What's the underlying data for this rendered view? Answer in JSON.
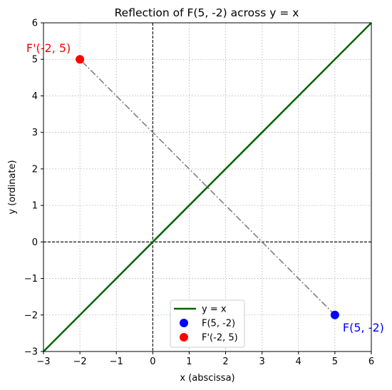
{
  "chart_data": {
    "type": "scatter",
    "title": "Reflection of F(5, -2) across y = x",
    "xlabel": "x (abscissa)",
    "ylabel": "y (ordinate)",
    "xlim": [
      -3,
      6
    ],
    "ylim": [
      -3,
      6
    ],
    "xticks": [
      -3,
      -2,
      -1,
      0,
      1,
      2,
      3,
      4,
      5,
      6
    ],
    "yticks": [
      -3,
      -2,
      -1,
      0,
      1,
      2,
      3,
      4,
      5,
      6
    ],
    "xtick_labels": [
      "−3",
      "−2",
      "−1",
      "0",
      "1",
      "2",
      "3",
      "4",
      "5",
      "6"
    ],
    "ytick_labels": [
      "−3",
      "−2",
      "−1",
      "0",
      "1",
      "2",
      "3",
      "4",
      "5",
      "6"
    ],
    "grid": true,
    "legend_position": "lower center",
    "line": {
      "name": "y = x",
      "x": [
        -3,
        6
      ],
      "y": [
        -3,
        6
      ],
      "color": "#006400"
    },
    "points": [
      {
        "name": "F(5, -2)",
        "label": "F(5, -2)",
        "x": 5,
        "y": -2,
        "color": "#0000ff"
      },
      {
        "name": "F'(-2, 5)",
        "label": "F'(-2, 5)",
        "x": -2,
        "y": 5,
        "color": "#ff0000"
      }
    ],
    "connector": {
      "from": [
        5,
        -2
      ],
      "to": [
        -2,
        5
      ],
      "color": "#808080",
      "style": "dash-dot"
    },
    "reference_lines": {
      "x0": true,
      "y0": true,
      "color": "#000000",
      "style": "dashed"
    }
  }
}
